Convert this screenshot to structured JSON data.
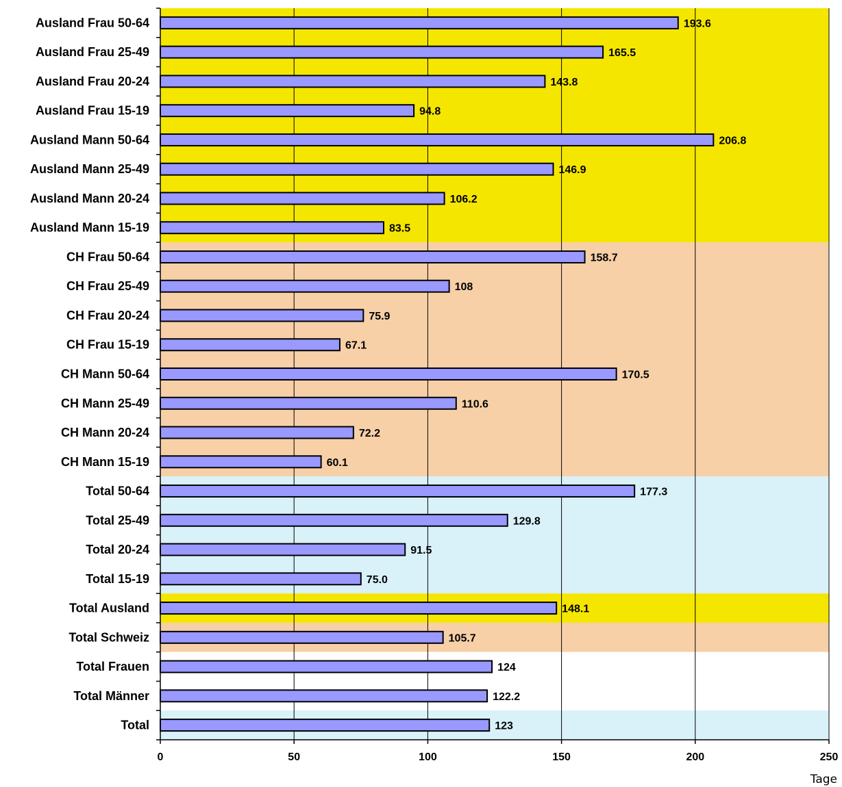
{
  "chart_data": {
    "type": "bar",
    "orientation": "horizontal",
    "categories": [
      "Ausland Frau 50-64",
      "Ausland Frau 25-49",
      "Ausland Frau 20-24",
      "Ausland Frau 15-19",
      "Ausland Mann 50-64",
      "Ausland Mann 25-49",
      "Ausland Mann 20-24",
      "Ausland Mann 15-19",
      "CH Frau 50-64",
      "CH Frau 25-49",
      "CH Frau 20-24",
      "CH Frau 15-19",
      "CH Mann 50-64",
      "CH Mann 25-49",
      "CH Mann 20-24",
      "CH Mann 15-19",
      "Total 50-64",
      "Total 25-49",
      "Total 20-24",
      "Total 15-19",
      "Total Ausland",
      "Total Schweiz",
      "Total Frauen",
      "Total Männer",
      "Total"
    ],
    "values": [
      193.6,
      165.5,
      143.8,
      94.8,
      206.8,
      146.9,
      106.2,
      83.5,
      158.7,
      108,
      75.9,
      67.1,
      170.5,
      110.6,
      72.2,
      60.1,
      177.3,
      129.8,
      91.5,
      75.0,
      148.1,
      105.7,
      124,
      122.2,
      123
    ],
    "value_labels": [
      "193.6",
      "165.5",
      "143.8",
      "94.8",
      "206.8",
      "146.9",
      "106.2",
      "83.5",
      "158.7",
      "108",
      "75.9",
      "67.1",
      "170.5",
      "110.6",
      "72.2",
      "60.1",
      "177.3",
      "129.8",
      "91.5",
      "75.0",
      "148.1",
      "105.7",
      "124",
      "122.2",
      "123"
    ],
    "xlim": [
      0,
      250
    ],
    "xticks": [
      0,
      50,
      100,
      150,
      200,
      250
    ],
    "xtick_labels": [
      "0",
      "50",
      "100",
      "150",
      "200",
      "250"
    ],
    "xlabel": "Tage",
    "grid": "vertical",
    "bar_color": "#9999ff",
    "bands": [
      {
        "from": 0,
        "to": 7,
        "color": "#f5e600"
      },
      {
        "from": 8,
        "to": 15,
        "color": "#f7d0a8"
      },
      {
        "from": 16,
        "to": 19,
        "color": "#d9f2fa"
      },
      {
        "from": 20,
        "to": 20,
        "color": "#f5e600"
      },
      {
        "from": 21,
        "to": 21,
        "color": "#f7d0a8"
      },
      {
        "from": 22,
        "to": 23,
        "color": "#ffffff"
      },
      {
        "from": 24,
        "to": 24,
        "color": "#d9f2fa"
      }
    ]
  }
}
